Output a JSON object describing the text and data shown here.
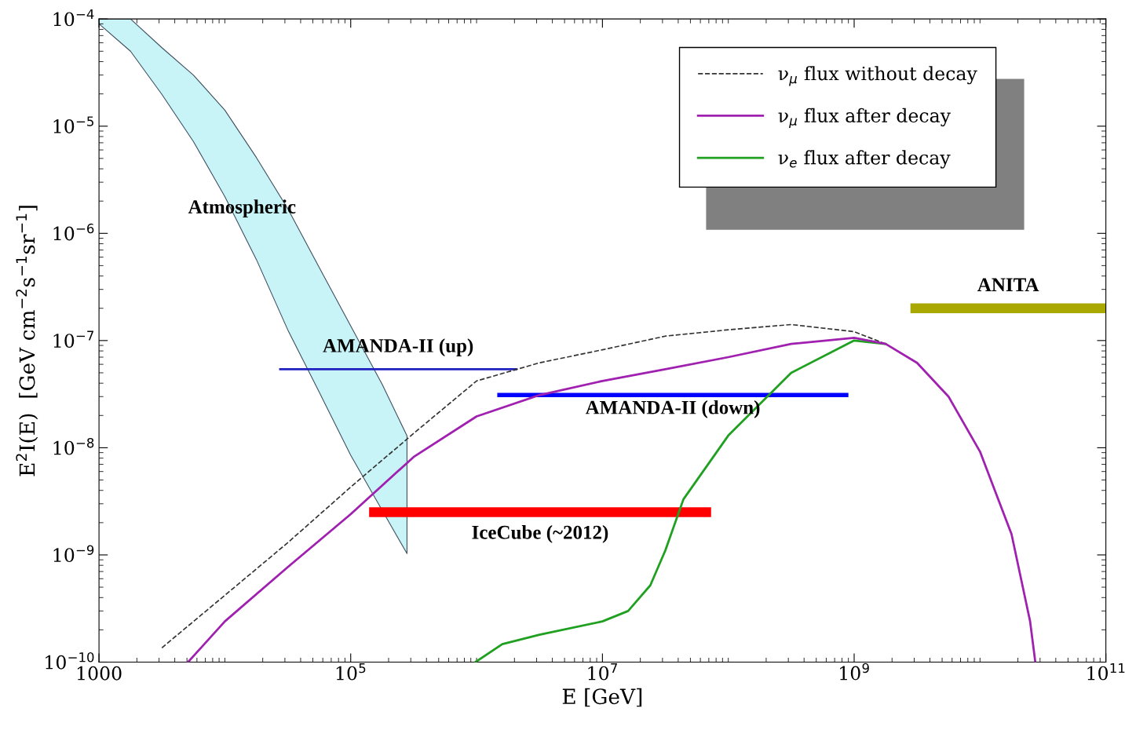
{
  "chart_data": {
    "type": "line",
    "xlabel": "E [GeV]",
    "ylabel": "E$^{2}$I(E)  [GeV cm$^{−2}$s$^{−1}$sr$^{−1}$]",
    "log": "xy",
    "xlim": [
      1000,
      100000000000.0
    ],
    "ylim": [
      1e-10,
      0.0001
    ],
    "xticks": [
      1000,
      {
        "value": 100000.0,
        "label": "10$^{5}$"
      },
      {
        "value": 10000000.0,
        "label": "10$^{7}$"
      },
      {
        "value": 1000000000.0,
        "label": "10$^{9}$"
      },
      {
        "value": 100000000000.0,
        "label": "10$^{11}$"
      }
    ],
    "yticks": [
      {
        "value": 1e-10,
        "label": "10$^{−10}$"
      },
      {
        "value": 1e-09,
        "label": "10$^{−9}$"
      },
      {
        "value": 1e-08,
        "label": "10$^{−8}$"
      },
      {
        "value": 1e-07,
        "label": "10$^{−7}$"
      },
      {
        "value": 1e-06,
        "label": "10$^{−6}$"
      },
      {
        "value": 1e-05,
        "label": "10$^{−5}$"
      },
      {
        "value": 0.0001,
        "label": "10$^{−4}$"
      }
    ],
    "grid": false,
    "legend": "top right",
    "series": [
      {
        "type": "area",
        "color": "#c8f4f8",
        "values": [
          null,
          null,
          null,
          null,
          null,
          null,
          null,
          null,
          null,
          null,
          null
        ],
        "x": [
          1000,
          1780,
          3160,
          5620,
          10000,
          17800,
          31600,
          56200,
          100000,
          178000,
          280000
        ],
        "lower": [
          9e-05,
          5e-05,
          1.98e-05,
          7.2e-06,
          2.2e-06,
          5.7e-07,
          1.26e-07,
          3.3e-08,
          8.5e-09,
          2.6e-09,
          1.03e-09
        ],
        "upper": [
          0.0001,
          0.0001,
          5.4e-05,
          3e-05,
          1.41e-05,
          5.1e-06,
          1.7e-06,
          4.8e-07,
          1.37e-07,
          3.9e-08,
          1.29e-08
        ]
      },
      {
        "name": "ν$_{μ}$ flux without decay",
        "color": "#333333",
        "line_style": "dashed",
        "x": [
          3160,
          10000,
          31600,
          100000,
          316000,
          1000000,
          3160000,
          10000000,
          31600000,
          100000000,
          316000000,
          1000000000,
          1780000000
        ],
        "values": [
          1.36e-10,
          4.2e-10,
          1.3e-09,
          4.3e-09,
          1.36e-08,
          4.2e-08,
          6.2e-08,
          8.2e-08,
          1.1e-07,
          1.26e-07,
          1.41e-07,
          1.21e-07,
          9.3e-08
        ]
      },
      {
        "name": "ν$_{μ}$ flux after decay",
        "color": "#a020b0",
        "line_style": "solid",
        "x": [
          5100,
          10000,
          31600,
          100000,
          316000,
          1000000,
          3160000,
          10000000,
          31600000,
          100000000,
          316000000,
          1000000000,
          1780000000,
          3160000000,
          5620000000,
          10000000000,
          17800000000,
          25000000000,
          27500000000
        ],
        "values": [
          1e-10,
          2.4e-10,
          7.7e-10,
          2.4e-09,
          8.2e-09,
          1.96e-08,
          3.1e-08,
          4.2e-08,
          5.4e-08,
          7e-08,
          9.3e-08,
          1.06e-07,
          9.3e-08,
          6.2e-08,
          3e-08,
          9.2e-09,
          1.56e-09,
          2.4e-10,
          1e-10
        ]
      },
      {
        "name": "ν$_{e}$ flux after decay",
        "color": "#20a020",
        "line_style": "solid",
        "x": [
          980000,
          1600000,
          3160000,
          10000000,
          16000000,
          24000000,
          31600000,
          44000000,
          100000000,
          316000000,
          1000000000,
          1780000000
        ],
        "values": [
          1e-10,
          1.47e-10,
          1.8e-10,
          2.4e-10,
          3e-10,
          5.2e-10,
          1.1e-09,
          3.3e-09,
          1.3e-08,
          5e-08,
          1e-07,
          9.3e-08
        ]
      },
      {
        "name": "AMANDA-II (up)",
        "color": "#2020c0",
        "x": [
          27000,
          2100000
        ],
        "values": [
          5.4e-08,
          5.4e-08
        ]
      },
      {
        "name": "AMANDA-II (down)",
        "color": "#0000ff",
        "x": [
          1460000,
          900000000
        ],
        "values": [
          3.1e-08,
          3.1e-08
        ]
      },
      {
        "name": "IceCube (~2012)",
        "color": "#ff0000",
        "x": [
          140000,
          73000000
        ],
        "values": [
          2.5e-09,
          2.5e-09
        ]
      },
      {
        "name": "ANITA",
        "color": "#a8a800",
        "x": [
          2800000000,
          100000000000.0
        ],
        "values": [
          2e-07,
          2e-07
        ]
      }
    ],
    "annotations": [
      "Atmospheric"
    ]
  }
}
